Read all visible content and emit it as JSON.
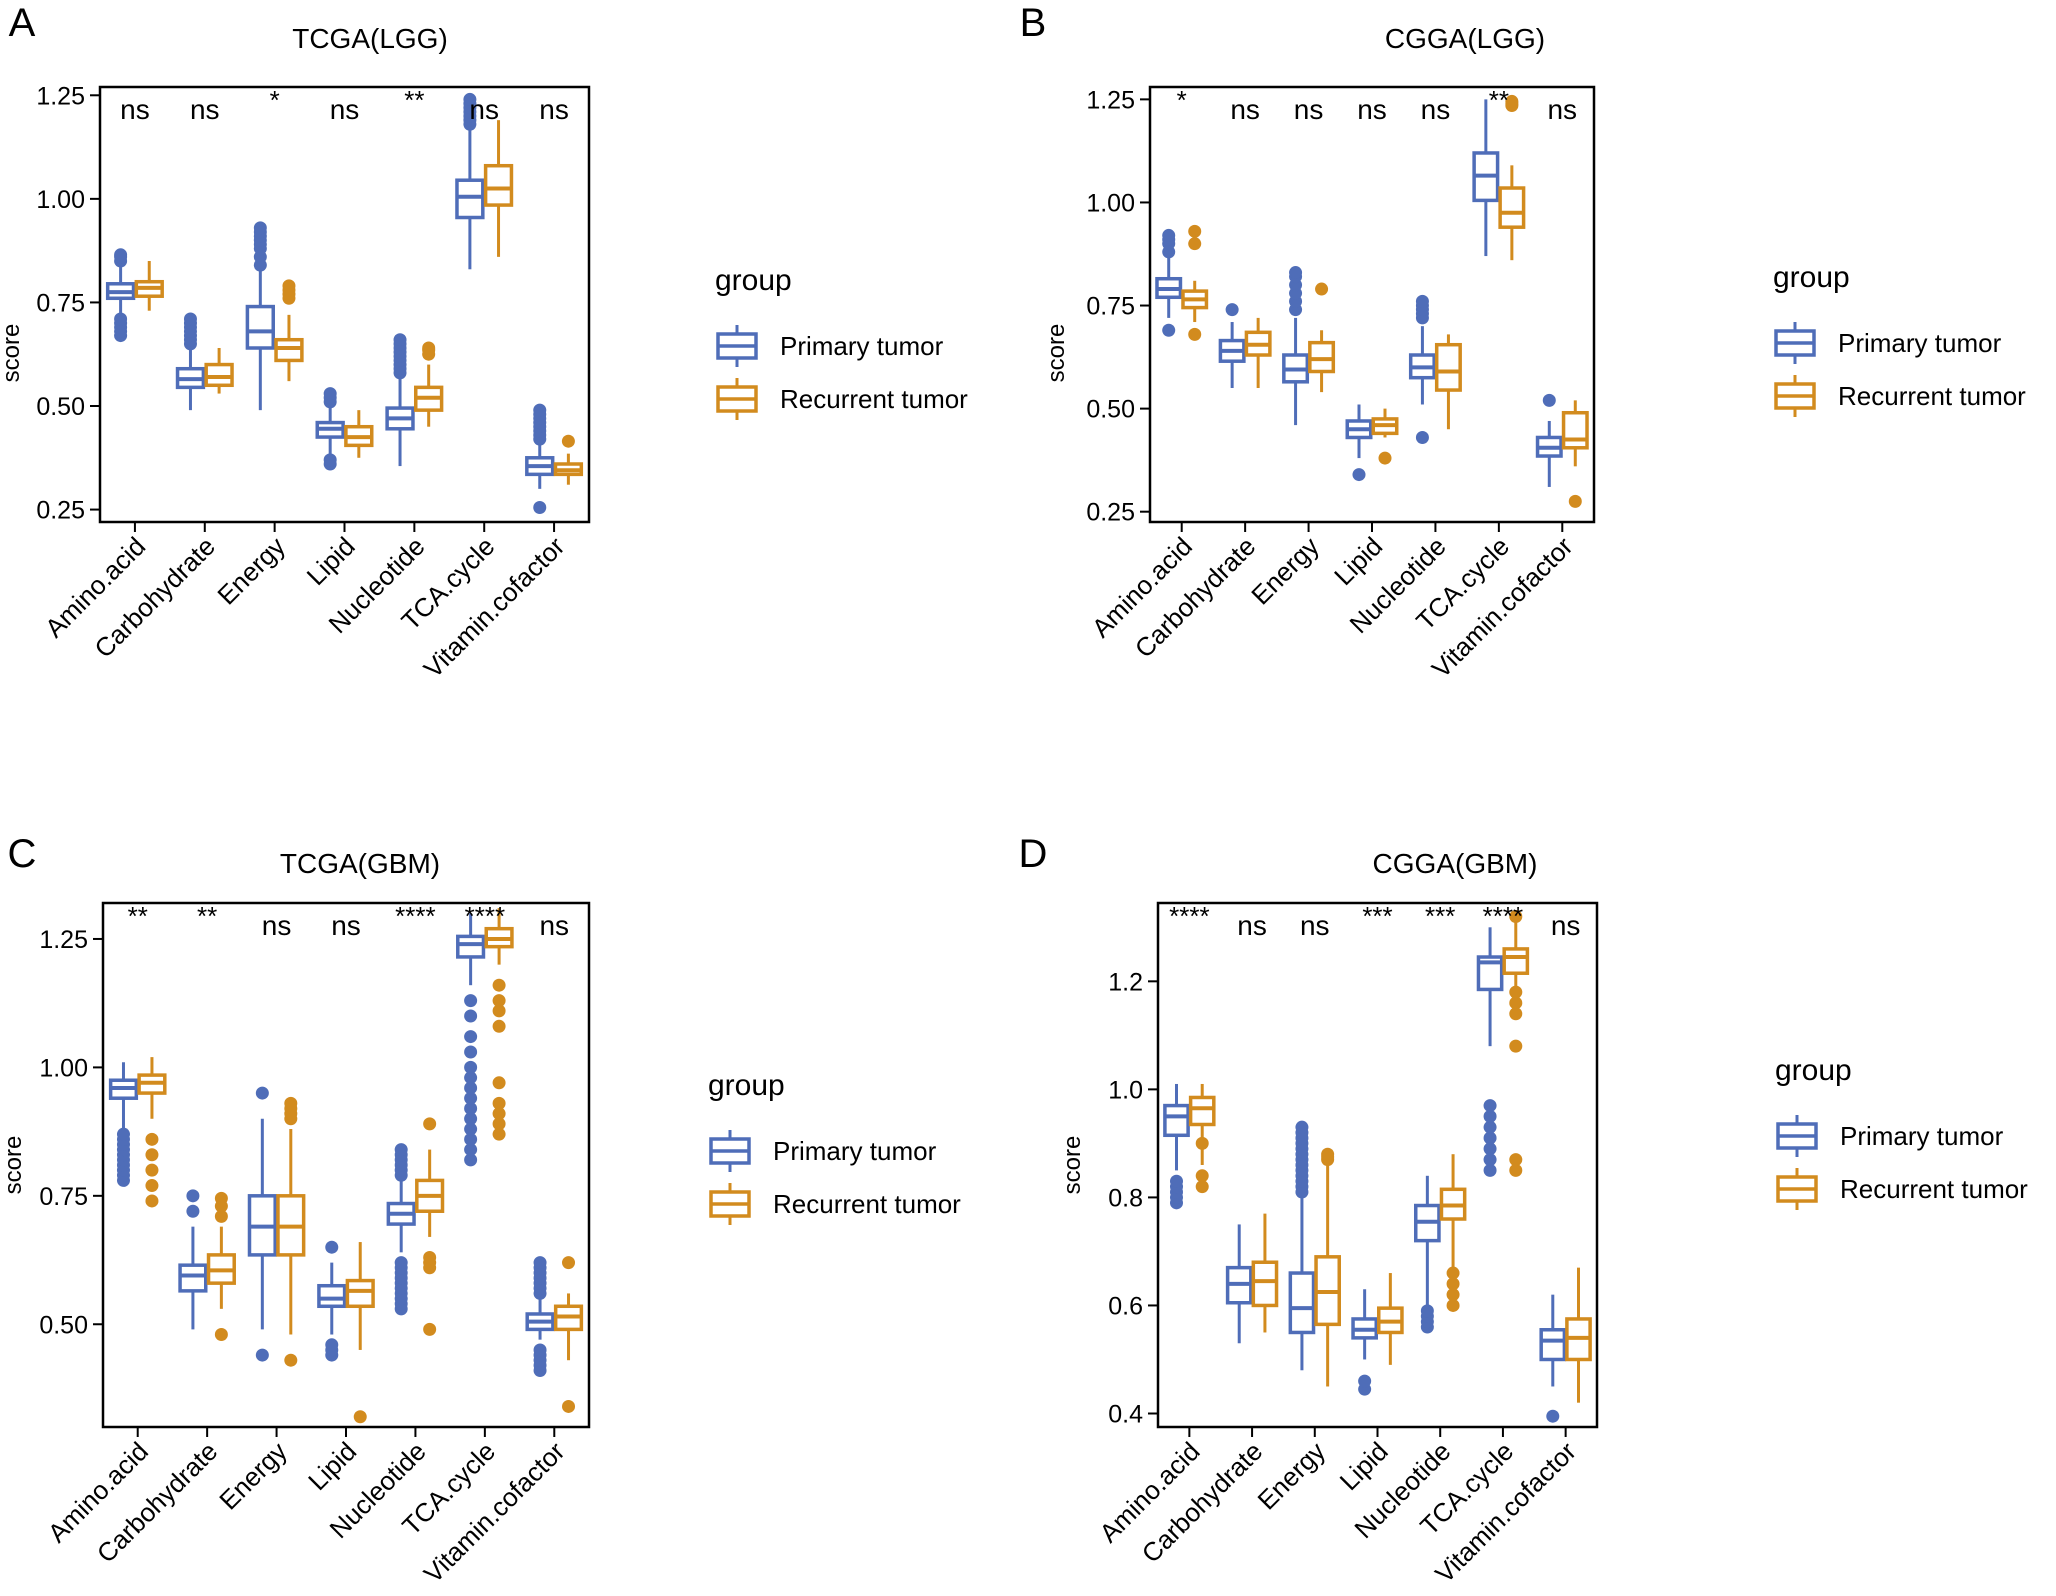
{
  "figure": {
    "categories": [
      "Amino.acid",
      "Carbohydrate",
      "Energy",
      "Lipid",
      "Nucleotide",
      "TCA.cycle",
      "Vitamin.cofactor"
    ],
    "legend": {
      "title": "group",
      "entries": [
        {
          "name": "Primary tumor",
          "color": "#4F6DB8"
        },
        {
          "name": "Recurrent tumor",
          "color": "#D28B1E"
        }
      ]
    },
    "ylabel": "score"
  },
  "chart_data": [
    {
      "type": "boxplot",
      "panel": "A",
      "title": "TCGA(LGG)",
      "ylabel": "score",
      "ylim": [
        0.22,
        1.27
      ],
      "yticks": [
        0.25,
        0.5,
        0.75,
        1.0,
        1.25
      ],
      "tick_labels": [
        "0.25",
        "0.50",
        "0.75",
        "1.00",
        "1.25"
      ],
      "significance": [
        "ns",
        "ns",
        "*",
        "ns",
        "**",
        "ns",
        "ns"
      ],
      "series": [
        {
          "name": "Primary tumor",
          "boxes": [
            {
              "q1": 0.76,
              "median": 0.775,
              "q3": 0.795,
              "lo": 0.72,
              "hi": 0.84,
              "outliers": [
                0.67,
                0.68,
                0.69,
                0.7,
                0.71,
                0.85,
                0.86,
                0.865
              ]
            },
            {
              "q1": 0.545,
              "median": 0.565,
              "q3": 0.59,
              "lo": 0.49,
              "hi": 0.64,
              "outliers": [
                0.65,
                0.66,
                0.67,
                0.68,
                0.69,
                0.7,
                0.71
              ]
            },
            {
              "q1": 0.64,
              "median": 0.68,
              "q3": 0.74,
              "lo": 0.49,
              "hi": 0.83,
              "outliers": [
                0.84,
                0.86,
                0.88,
                0.89,
                0.9,
                0.91,
                0.92,
                0.93
              ]
            },
            {
              "q1": 0.425,
              "median": 0.445,
              "q3": 0.46,
              "lo": 0.38,
              "hi": 0.5,
              "outliers": [
                0.36,
                0.37,
                0.51,
                0.52,
                0.53
              ]
            },
            {
              "q1": 0.445,
              "median": 0.47,
              "q3": 0.495,
              "lo": 0.355,
              "hi": 0.57,
              "outliers": [
                0.58,
                0.59,
                0.6,
                0.61,
                0.62,
                0.63,
                0.64,
                0.65,
                0.66
              ]
            },
            {
              "q1": 0.955,
              "median": 1.005,
              "q3": 1.045,
              "lo": 0.83,
              "hi": 1.17,
              "outliers": [
                1.18,
                1.19,
                1.2,
                1.21,
                1.22,
                1.23,
                1.24
              ]
            },
            {
              "q1": 0.335,
              "median": 0.355,
              "q3": 0.375,
              "lo": 0.3,
              "hi": 0.41,
              "outliers": [
                0.255,
                0.42,
                0.43,
                0.44,
                0.45,
                0.46,
                0.47,
                0.48,
                0.49
              ]
            }
          ]
        },
        {
          "name": "Recurrent tumor",
          "boxes": [
            {
              "q1": 0.765,
              "median": 0.785,
              "q3": 0.8,
              "lo": 0.73,
              "hi": 0.85,
              "outliers": []
            },
            {
              "q1": 0.55,
              "median": 0.57,
              "q3": 0.6,
              "lo": 0.53,
              "hi": 0.64,
              "outliers": []
            },
            {
              "q1": 0.61,
              "median": 0.64,
              "q3": 0.66,
              "lo": 0.56,
              "hi": 0.72,
              "outliers": [
                0.76,
                0.77,
                0.78,
                0.79
              ]
            },
            {
              "q1": 0.405,
              "median": 0.425,
              "q3": 0.45,
              "lo": 0.375,
              "hi": 0.49,
              "outliers": []
            },
            {
              "q1": 0.49,
              "median": 0.52,
              "q3": 0.545,
              "lo": 0.45,
              "hi": 0.6,
              "outliers": [
                0.625,
                0.635,
                0.64
              ]
            },
            {
              "q1": 0.985,
              "median": 1.025,
              "q3": 1.08,
              "lo": 0.86,
              "hi": 1.19,
              "outliers": []
            },
            {
              "q1": 0.335,
              "median": 0.345,
              "q3": 0.36,
              "lo": 0.31,
              "hi": 0.385,
              "outliers": [
                0.415
              ]
            }
          ]
        }
      ]
    },
    {
      "type": "boxplot",
      "panel": "B",
      "title": "CGGA(LGG)",
      "ylabel": "score",
      "ylim": [
        0.225,
        1.28
      ],
      "yticks": [
        0.25,
        0.5,
        0.75,
        1.0,
        1.25
      ],
      "tick_labels": [
        "0.25",
        "0.50",
        "0.75",
        "1.00",
        "1.25"
      ],
      "significance": [
        "*",
        "ns",
        "ns",
        "ns",
        "ns",
        "**",
        "ns"
      ],
      "series": [
        {
          "name": "Primary tumor",
          "boxes": [
            {
              "q1": 0.77,
              "median": 0.79,
              "q3": 0.815,
              "lo": 0.72,
              "hi": 0.87,
              "outliers": [
                0.69,
                0.88,
                0.9,
                0.91,
                0.92
              ]
            },
            {
              "q1": 0.615,
              "median": 0.64,
              "q3": 0.665,
              "lo": 0.55,
              "hi": 0.71,
              "outliers": [
                0.74
              ]
            },
            {
              "q1": 0.565,
              "median": 0.595,
              "q3": 0.63,
              "lo": 0.46,
              "hi": 0.72,
              "outliers": [
                0.74,
                0.76,
                0.78,
                0.8,
                0.82,
                0.83
              ]
            },
            {
              "q1": 0.43,
              "median": 0.45,
              "q3": 0.47,
              "lo": 0.38,
              "hi": 0.51,
              "outliers": [
                0.34
              ]
            },
            {
              "q1": 0.575,
              "median": 0.6,
              "q3": 0.63,
              "lo": 0.51,
              "hi": 0.7,
              "outliers": [
                0.43,
                0.72,
                0.73,
                0.74,
                0.75,
                0.76
              ]
            },
            {
              "q1": 1.005,
              "median": 1.065,
              "q3": 1.12,
              "lo": 0.87,
              "hi": 1.25,
              "outliers": []
            },
            {
              "q1": 0.385,
              "median": 0.405,
              "q3": 0.43,
              "lo": 0.31,
              "hi": 0.47,
              "outliers": [
                0.52
              ]
            }
          ]
        },
        {
          "name": "Recurrent tumor",
          "boxes": [
            {
              "q1": 0.745,
              "median": 0.765,
              "q3": 0.785,
              "lo": 0.71,
              "hi": 0.81,
              "outliers": [
                0.68,
                0.9,
                0.93
              ]
            },
            {
              "q1": 0.63,
              "median": 0.655,
              "q3": 0.685,
              "lo": 0.55,
              "hi": 0.72,
              "outliers": []
            },
            {
              "q1": 0.59,
              "median": 0.62,
              "q3": 0.66,
              "lo": 0.54,
              "hi": 0.69,
              "outliers": [
                0.79
              ]
            },
            {
              "q1": 0.44,
              "median": 0.46,
              "q3": 0.475,
              "lo": 0.43,
              "hi": 0.5,
              "outliers": [
                0.38
              ]
            },
            {
              "q1": 0.545,
              "median": 0.59,
              "q3": 0.655,
              "lo": 0.45,
              "hi": 0.68,
              "outliers": []
            },
            {
              "q1": 0.94,
              "median": 0.975,
              "q3": 1.035,
              "lo": 0.86,
              "hi": 1.09,
              "outliers": [
                1.235,
                1.24,
                1.245
              ]
            },
            {
              "q1": 0.405,
              "median": 0.425,
              "q3": 0.49,
              "lo": 0.36,
              "hi": 0.52,
              "outliers": [
                0.275
              ]
            }
          ]
        }
      ]
    },
    {
      "type": "boxplot",
      "panel": "C",
      "title": "TCGA(GBM)",
      "ylabel": "score",
      "ylim": [
        0.3,
        1.32
      ],
      "yticks": [
        0.5,
        0.75,
        1.0,
        1.25
      ],
      "tick_labels": [
        "0.50",
        "0.75",
        "1.00",
        "1.25"
      ],
      "significance": [
        "**",
        "**",
        "ns",
        "ns",
        "****",
        "****",
        "ns"
      ],
      "series": [
        {
          "name": "Primary tumor",
          "boxes": [
            {
              "q1": 0.94,
              "median": 0.96,
              "q3": 0.975,
              "lo": 0.88,
              "hi": 1.01,
              "outliers": [
                0.78,
                0.79,
                0.8,
                0.81,
                0.82,
                0.83,
                0.84,
                0.85,
                0.86,
                0.87
              ]
            },
            {
              "q1": 0.565,
              "median": 0.595,
              "q3": 0.615,
              "lo": 0.49,
              "hi": 0.69,
              "outliers": [
                0.72,
                0.75
              ]
            },
            {
              "q1": 0.635,
              "median": 0.69,
              "q3": 0.75,
              "lo": 0.49,
              "hi": 0.9,
              "outliers": [
                0.44,
                0.95
              ]
            },
            {
              "q1": 0.535,
              "median": 0.55,
              "q3": 0.575,
              "lo": 0.48,
              "hi": 0.62,
              "outliers": [
                0.44,
                0.45,
                0.46,
                0.65
              ]
            },
            {
              "q1": 0.695,
              "median": 0.715,
              "q3": 0.735,
              "lo": 0.64,
              "hi": 0.78,
              "outliers": [
                0.53,
                0.54,
                0.55,
                0.56,
                0.57,
                0.58,
                0.59,
                0.6,
                0.61,
                0.62,
                0.79,
                0.8,
                0.81,
                0.82,
                0.83,
                0.84
              ]
            },
            {
              "q1": 1.215,
              "median": 1.24,
              "q3": 1.255,
              "lo": 1.16,
              "hi": 1.3,
              "outliers": [
                0.82,
                0.84,
                0.86,
                0.88,
                0.9,
                0.92,
                0.94,
                0.96,
                0.98,
                1.0,
                1.03,
                1.06,
                1.1,
                1.13
              ]
            },
            {
              "q1": 0.49,
              "median": 0.505,
              "q3": 0.52,
              "lo": 0.47,
              "hi": 0.55,
              "outliers": [
                0.41,
                0.42,
                0.43,
                0.44,
                0.45,
                0.56,
                0.57,
                0.58,
                0.59,
                0.6,
                0.61,
                0.62
              ]
            }
          ]
        },
        {
          "name": "Recurrent tumor",
          "boxes": [
            {
              "q1": 0.95,
              "median": 0.97,
              "q3": 0.985,
              "lo": 0.9,
              "hi": 1.02,
              "outliers": [
                0.74,
                0.77,
                0.8,
                0.83,
                0.86
              ]
            },
            {
              "q1": 0.58,
              "median": 0.605,
              "q3": 0.635,
              "lo": 0.53,
              "hi": 0.69,
              "outliers": [
                0.48,
                0.71,
                0.73,
                0.745
              ]
            },
            {
              "q1": 0.635,
              "median": 0.69,
              "q3": 0.75,
              "lo": 0.48,
              "hi": 0.88,
              "outliers": [
                0.43,
                0.9,
                0.91,
                0.92,
                0.93
              ]
            },
            {
              "q1": 0.535,
              "median": 0.565,
              "q3": 0.585,
              "lo": 0.45,
              "hi": 0.66,
              "outliers": [
                0.32
              ]
            },
            {
              "q1": 0.72,
              "median": 0.75,
              "q3": 0.78,
              "lo": 0.67,
              "hi": 0.84,
              "outliers": [
                0.49,
                0.61,
                0.62,
                0.63,
                0.89
              ]
            },
            {
              "q1": 1.235,
              "median": 1.25,
              "q3": 1.27,
              "lo": 1.2,
              "hi": 1.31,
              "outliers": [
                0.87,
                0.89,
                0.91,
                0.93,
                0.97,
                1.08,
                1.11,
                1.13,
                1.16
              ]
            },
            {
              "q1": 0.49,
              "median": 0.515,
              "q3": 0.535,
              "lo": 0.43,
              "hi": 0.56,
              "outliers": [
                0.34,
                0.62
              ]
            }
          ]
        }
      ]
    },
    {
      "type": "boxplot",
      "panel": "D",
      "title": "CGGA(GBM)",
      "ylabel": "score",
      "ylim": [
        0.375,
        1.345
      ],
      "yticks": [
        0.4,
        0.6,
        0.8,
        1.0,
        1.2
      ],
      "tick_labels": [
        "0.4",
        "0.6",
        "0.8",
        "1.0",
        "1.2"
      ],
      "significance": [
        "****",
        "ns",
        "ns",
        "***",
        "***",
        "****",
        "ns"
      ],
      "series": [
        {
          "name": "Primary tumor",
          "boxes": [
            {
              "q1": 0.915,
              "median": 0.95,
              "q3": 0.97,
              "lo": 0.85,
              "hi": 1.01,
              "outliers": [
                0.79,
                0.8,
                0.81,
                0.82,
                0.83
              ]
            },
            {
              "q1": 0.605,
              "median": 0.64,
              "q3": 0.67,
              "lo": 0.53,
              "hi": 0.75,
              "outliers": []
            },
            {
              "q1": 0.55,
              "median": 0.595,
              "q3": 0.66,
              "lo": 0.48,
              "hi": 0.8,
              "outliers": [
                0.81,
                0.82,
                0.83,
                0.84,
                0.85,
                0.86,
                0.87,
                0.88,
                0.89,
                0.9,
                0.91,
                0.92,
                0.93
              ]
            },
            {
              "q1": 0.54,
              "median": 0.555,
              "q3": 0.575,
              "lo": 0.5,
              "hi": 0.63,
              "outliers": [
                0.445,
                0.46
              ]
            },
            {
              "q1": 0.72,
              "median": 0.755,
              "q3": 0.785,
              "lo": 0.6,
              "hi": 0.84,
              "outliers": [
                0.56,
                0.57,
                0.58,
                0.59
              ]
            },
            {
              "q1": 1.185,
              "median": 1.235,
              "q3": 1.245,
              "lo": 1.08,
              "hi": 1.3,
              "outliers": [
                0.85,
                0.87,
                0.89,
                0.91,
                0.93,
                0.95,
                0.97
              ]
            },
            {
              "q1": 0.5,
              "median": 0.535,
              "q3": 0.555,
              "lo": 0.45,
              "hi": 0.62,
              "outliers": [
                0.395
              ]
            }
          ]
        },
        {
          "name": "Recurrent tumor",
          "boxes": [
            {
              "q1": 0.935,
              "median": 0.965,
              "q3": 0.985,
              "lo": 0.86,
              "hi": 1.01,
              "outliers": [
                0.82,
                0.84,
                0.9
              ]
            },
            {
              "q1": 0.6,
              "median": 0.645,
              "q3": 0.68,
              "lo": 0.55,
              "hi": 0.77,
              "outliers": []
            },
            {
              "q1": 0.565,
              "median": 0.625,
              "q3": 0.69,
              "lo": 0.45,
              "hi": 0.86,
              "outliers": [
                0.87,
                0.875,
                0.88
              ]
            },
            {
              "q1": 0.55,
              "median": 0.57,
              "q3": 0.595,
              "lo": 0.49,
              "hi": 0.66,
              "outliers": []
            },
            {
              "q1": 0.76,
              "median": 0.785,
              "q3": 0.815,
              "lo": 0.67,
              "hi": 0.88,
              "outliers": [
                0.6,
                0.62,
                0.64,
                0.66
              ]
            },
            {
              "q1": 1.215,
              "median": 1.245,
              "q3": 1.26,
              "lo": 1.17,
              "hi": 1.31,
              "outliers": [
                0.85,
                0.87,
                1.08,
                1.14,
                1.16,
                1.18,
                1.32
              ]
            },
            {
              "q1": 0.5,
              "median": 0.54,
              "q3": 0.575,
              "lo": 0.42,
              "hi": 0.67,
              "outliers": []
            }
          ]
        }
      ]
    }
  ]
}
